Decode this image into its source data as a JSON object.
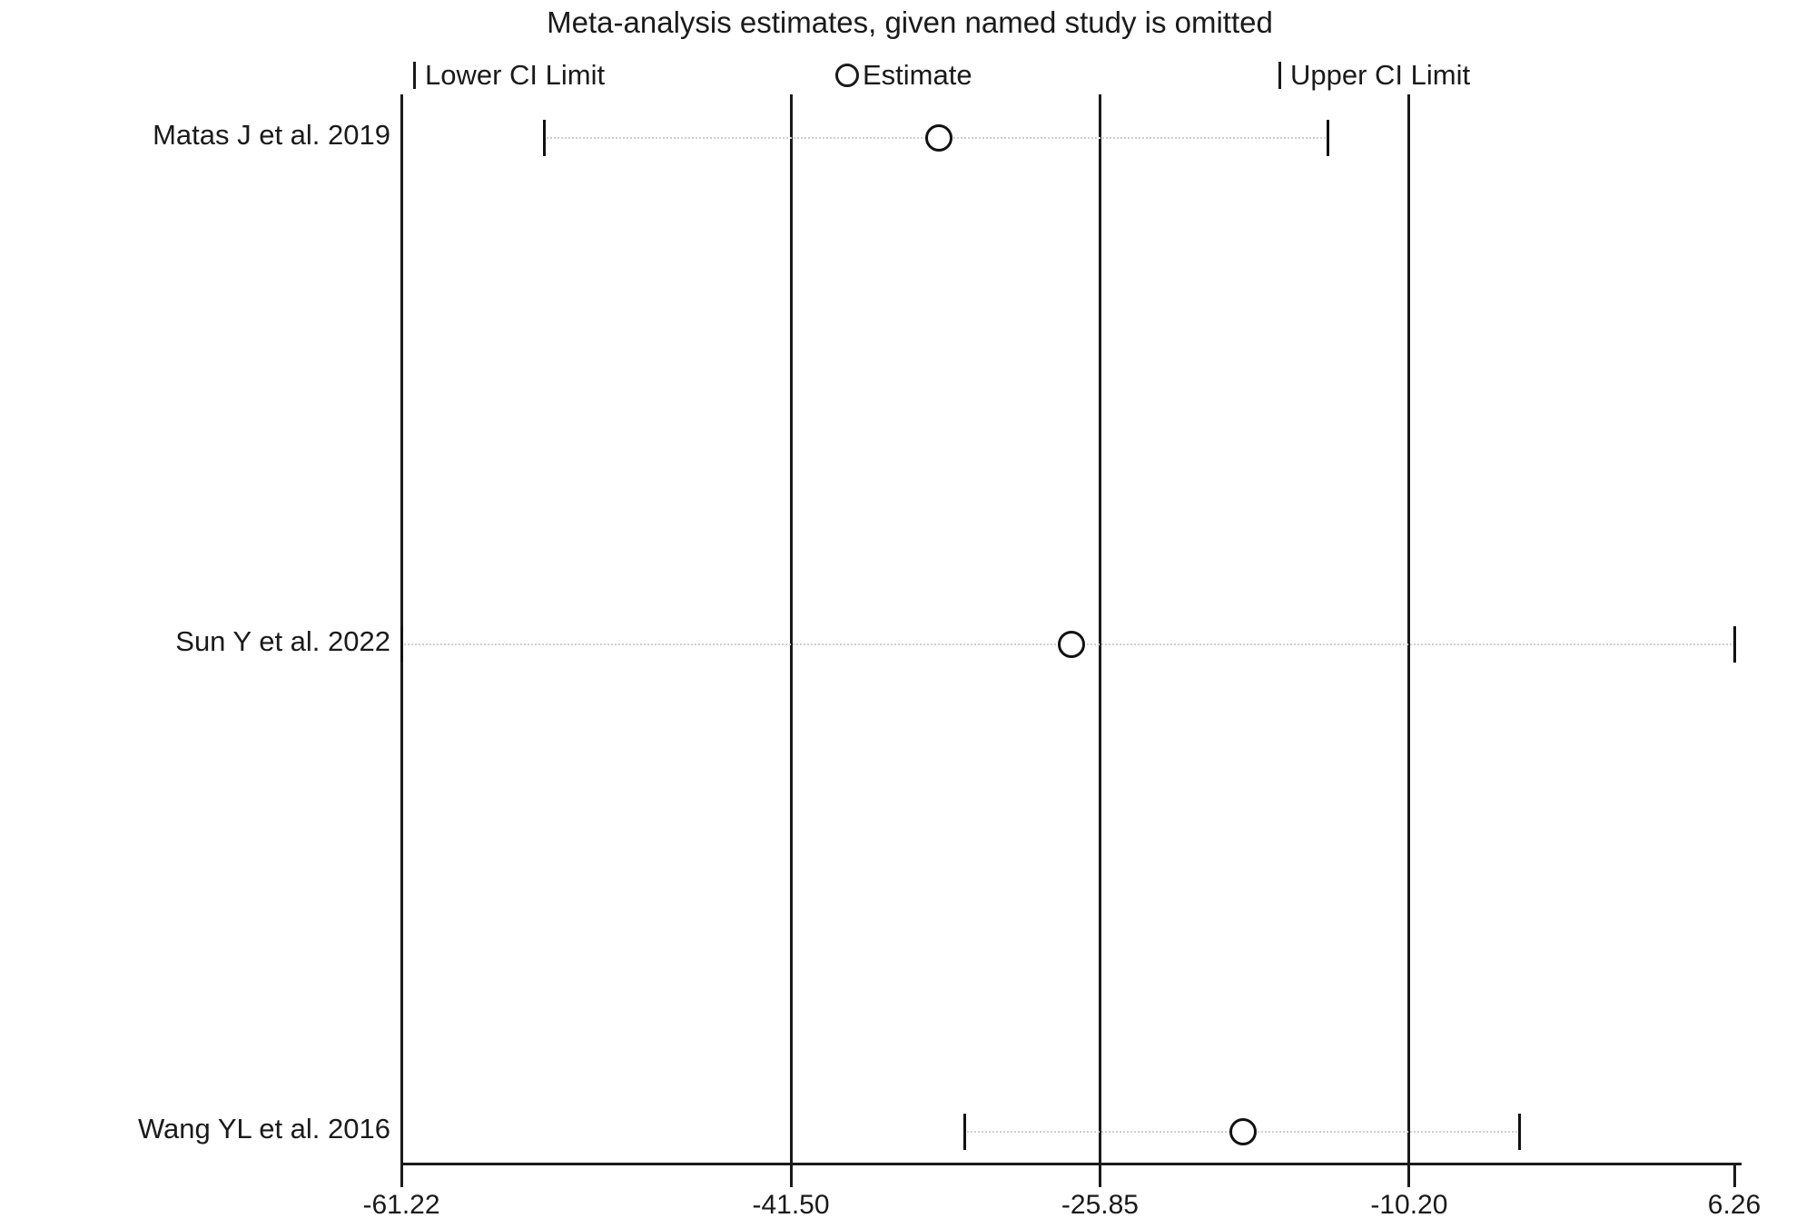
{
  "chart_data": {
    "type": "scatter",
    "variant": "leave-one-out-meta-analysis-forest",
    "title": "Meta-analysis estimates, given named study is omitted",
    "legend": {
      "lower": "Lower CI Limit",
      "estimate": "Estimate",
      "upper": "Upper CI Limit"
    },
    "x_ticks": [
      -61.22,
      -41.5,
      -25.85,
      -10.2,
      6.26
    ],
    "x_tick_labels": [
      "-61.22",
      "-41.50",
      "-25.85",
      "-10.20",
      "6.26"
    ],
    "xlim": [
      -61.22,
      6.26
    ],
    "grid": false,
    "legend_position": "top",
    "reference_lines": {
      "overall_lower_ci": -41.5,
      "overall_estimate": -25.85,
      "overall_upper_ci": -10.2
    },
    "studies": [
      {
        "label": "Matas J et al. 2019",
        "lower_ci": -54.0,
        "estimate": -34.0,
        "upper_ci": -14.3
      },
      {
        "label": "Sun Y et al. 2022",
        "lower_ci": -61.22,
        "estimate": -27.3,
        "upper_ci": 6.26
      },
      {
        "label": "Wang YL et al. 2016",
        "lower_ci": -32.7,
        "estimate": -18.6,
        "upper_ci": -4.6
      }
    ],
    "colors": {
      "line": "#1a1a1a",
      "marker": "#111111",
      "dotted_ci_line": "#cfcfcf",
      "background": "#ffffff"
    }
  }
}
